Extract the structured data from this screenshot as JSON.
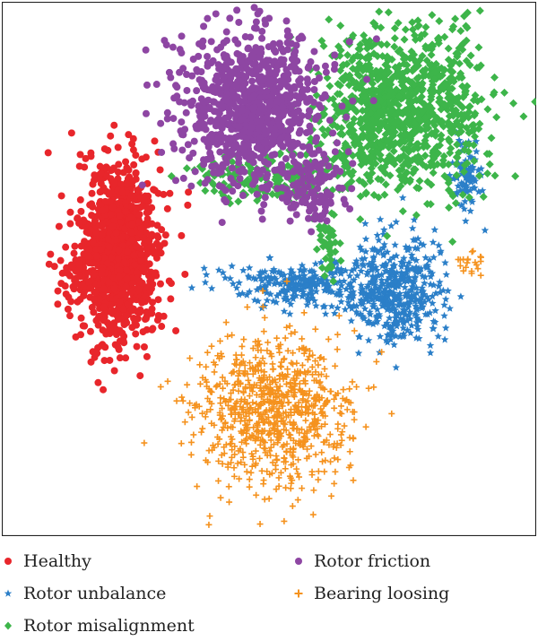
{
  "chart_data": {
    "type": "scatter",
    "title": "",
    "xlabel": "",
    "ylabel": "",
    "axes_visible": false,
    "grid": false,
    "legend_position": "bottom",
    "xlim": [
      0,
      100
    ],
    "ylim": [
      0,
      100
    ],
    "series": [
      {
        "name": "Healthy",
        "marker": "circle",
        "color": "#e8262b",
        "clusters": [
          {
            "cx": 22,
            "cy": 53,
            "sx": 3.6,
            "sy": 8.0,
            "n": 1100
          },
          {
            "cx": 15,
            "cy": 47,
            "sx": 3.0,
            "sy": 3.0,
            "n": 50
          }
        ]
      },
      {
        "name": "Rotor unbalance",
        "marker": "star",
        "color": "#2b7fc8",
        "clusters": [
          {
            "cx": 74,
            "cy": 46,
            "sx": 4.5,
            "sy": 5.0,
            "n": 420
          },
          {
            "cx": 57,
            "cy": 47,
            "sx": 7.0,
            "sy": 2.0,
            "n": 260
          },
          {
            "cx": 87,
            "cy": 67,
            "sx": 1.6,
            "sy": 3.5,
            "n": 90
          }
        ]
      },
      {
        "name": "Rotor misalignment",
        "marker": "diamond",
        "color": "#3db54a",
        "clusters": [
          {
            "cx": 74,
            "cy": 80,
            "sx": 8.0,
            "sy": 7.5,
            "n": 1000
          },
          {
            "cx": 50,
            "cy": 67,
            "sx": 7.5,
            "sy": 2.0,
            "n": 160
          },
          {
            "cx": 61,
            "cy": 55,
            "sx": 1.2,
            "sy": 2.5,
            "n": 40
          }
        ]
      },
      {
        "name": "Rotor friction",
        "marker": "circle",
        "color": "#8e46a3",
        "clusters": [
          {
            "cx": 47,
            "cy": 80,
            "sx": 6.5,
            "sy": 7.0,
            "n": 900
          },
          {
            "cx": 58,
            "cy": 65,
            "sx": 3.0,
            "sy": 3.5,
            "n": 120
          }
        ]
      },
      {
        "name": "Bearing loosing",
        "marker": "plus",
        "color": "#f5921e",
        "clusters": [
          {
            "cx": 51,
            "cy": 24,
            "sx": 7.5,
            "sy": 7.0,
            "n": 800
          },
          {
            "cx": 88,
            "cy": 51,
            "sx": 1.4,
            "sy": 1.2,
            "n": 20
          }
        ]
      }
    ]
  }
}
